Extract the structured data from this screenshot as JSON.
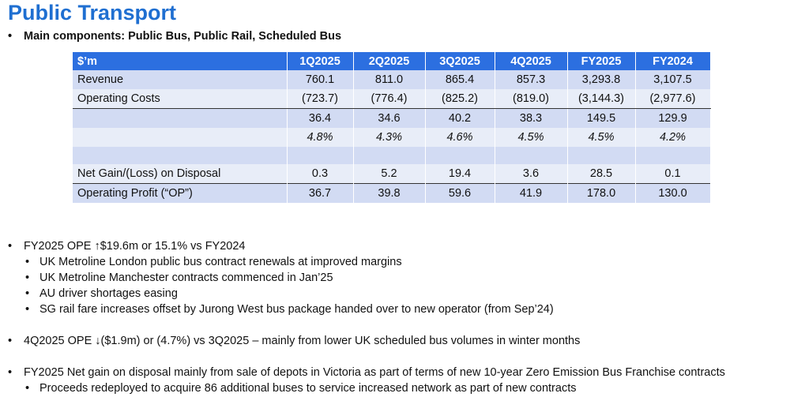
{
  "title": "Public Transport",
  "main_components": "Main components: Public Bus, Public Rail, Scheduled Bus",
  "table": {
    "headers": [
      "$’m",
      "1Q2025",
      "2Q2025",
      "3Q2025",
      "4Q2025",
      "FY2025",
      "FY2024"
    ],
    "rows": [
      [
        "Revenue",
        "760.1",
        "811.0",
        "865.4",
        "857.3",
        "3,293.8",
        "3,107.5"
      ],
      [
        "Operating Costs",
        "(723.7)",
        "(776.4)",
        "(825.2)",
        "(819.0)",
        "(3,144.3)",
        "(2,977.6)"
      ],
      [
        "",
        "36.4",
        "34.6",
        "40.2",
        "38.3",
        "149.5",
        "129.9"
      ],
      [
        "",
        "4.8%",
        "4.3%",
        "4.6%",
        "4.5%",
        "4.5%",
        "4.2%"
      ],
      [
        "",
        "",
        "",
        "",
        "",
        "",
        ""
      ],
      [
        "Net Gain/(Loss) on Disposal",
        "0.3",
        "5.2",
        "19.4",
        "3.6",
        "28.5",
        "0.1"
      ],
      [
        "Operating Profit (“OP”)",
        "36.7",
        "39.8",
        "59.6",
        "41.9",
        "178.0",
        "130.0"
      ]
    ]
  },
  "notes": {
    "fy_ope": "FY2025 OPE ↑$19.6m or 15.1% vs FY2024",
    "fy_ope_sub": [
      "UK Metroline London public bus contract renewals at improved margins",
      "UK Metroline Manchester contracts commenced in Jan’25",
      "AU driver shortages easing",
      "SG rail fare increases offset by Jurong West bus package handed over to new operator (from Sep’24)"
    ],
    "q4_ope": "4Q2025 OPE ↓($1.9m) or (4.7%) vs 3Q2025 – mainly from lower UK scheduled bus volumes in winter months",
    "net_gain": "FY2025 Net gain on disposal mainly from sale of depots in Victoria as part of terms of new 10-year Zero Emission Bus Franchise contracts",
    "net_gain_sub": [
      "Proceeds redeployed to acquire 86 additional buses to service increased network as part of new contracts"
    ]
  }
}
